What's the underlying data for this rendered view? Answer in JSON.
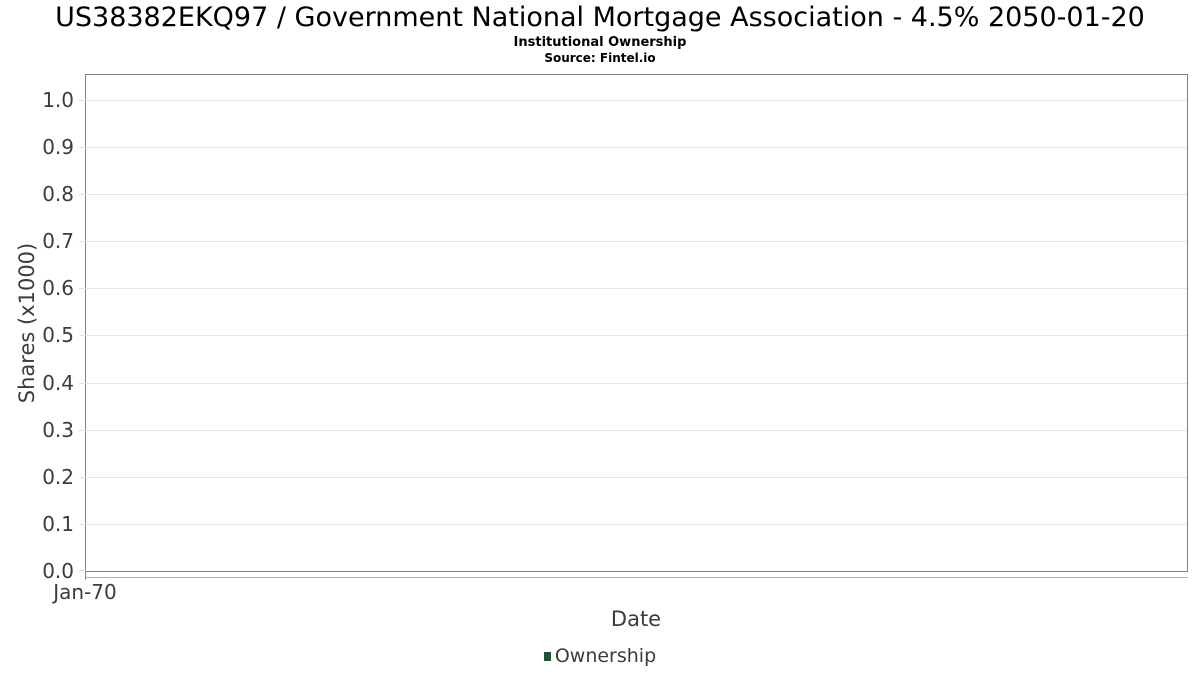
{
  "chart_data": {
    "type": "line",
    "title": "US38382EKQ97 / Government National Mortgage Association - 4.5% 2050-01-20",
    "subtitle": "Institutional Ownership",
    "source": "Source: Fintel.io",
    "xlabel": "Date",
    "ylabel": "Shares (x1000)",
    "x_tick_labels": [
      "Jan-70"
    ],
    "y_tick_labels": [
      "0.0",
      "0.1",
      "0.2",
      "0.3",
      "0.4",
      "0.5",
      "0.6",
      "0.7",
      "0.8",
      "0.9",
      "1.0"
    ],
    "y_tick_values": [
      0,
      0.1,
      0.2,
      0.3,
      0.4,
      0.5,
      0.6,
      0.7,
      0.8,
      0.9,
      1.0
    ],
    "ylim": [
      0,
      1.053
    ],
    "grid": true,
    "legend_position": "bottom-center",
    "series": [
      {
        "name": "Ownership",
        "color": "#1e5334",
        "values": []
      }
    ],
    "colors": {
      "plot_border": "#7f7f7f",
      "gridline": "#e6e6e6",
      "axis_line": "#b3b3b3",
      "axis_text": "#3c3c3c",
      "title_text": "#000000"
    }
  }
}
